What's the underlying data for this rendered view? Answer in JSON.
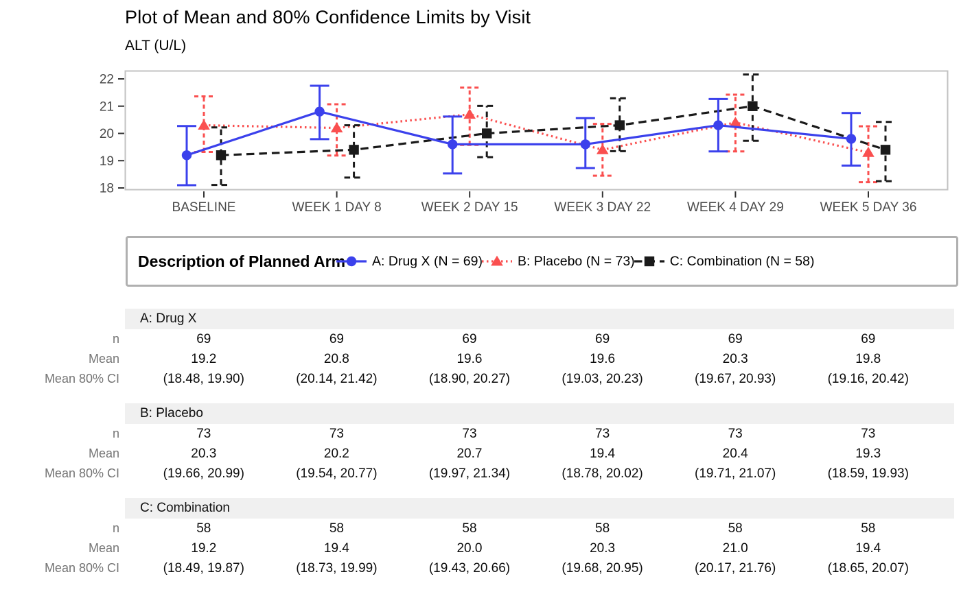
{
  "page": {
    "title": "Plot of Mean and 80% Confidence Limits by Visit",
    "subtitle": "ALT (U/L)"
  },
  "colors": {
    "drug_x": "#3b41ec",
    "placebo": "#fa4f4f",
    "combination": "#1a1a1a",
    "axis_text": "#4a4a4a",
    "axis_tick": "#333333",
    "plot_border": "#c2c2c2",
    "legend_border": "#b0b0b0",
    "section_band": "#f0f0f0",
    "row_label_text": "#757575"
  },
  "chart_data": {
    "type": "line",
    "title": "Plot of Mean and 80% Confidence Limits by Visit",
    "subtitle": "ALT (U/L)",
    "categories": [
      "BASELINE",
      "WEEK 1 DAY 8",
      "WEEK 2 DAY 15",
      "WEEK 3 DAY 22",
      "WEEK 4 DAY 29",
      "WEEK 5 DAY 36"
    ],
    "y_ticks": [
      18,
      19,
      20,
      21,
      22
    ],
    "ylim": [
      17.9,
      22.35
    ],
    "grid": false,
    "legend_title": "Description of Planned Arm",
    "legend_position": "bottom",
    "series": [
      {
        "name": "A: Drug X (N = 69)",
        "arm": "A: Drug X",
        "color": "#3b41ec",
        "marker": "circle",
        "line_style": "solid",
        "n": [
          69,
          69,
          69,
          69,
          69,
          69
        ],
        "mean": [
          19.2,
          20.8,
          19.6,
          19.6,
          20.3,
          19.8
        ],
        "ci80_low": [
          18.48,
          20.14,
          18.9,
          19.03,
          19.67,
          19.16
        ],
        "ci80_high": [
          19.9,
          21.42,
          20.27,
          20.23,
          20.93,
          20.42
        ],
        "whisker_low": [
          18.1,
          19.79,
          18.53,
          18.73,
          19.34,
          18.82
        ],
        "whisker_high": [
          20.27,
          21.75,
          20.62,
          20.56,
          21.26,
          20.75
        ]
      },
      {
        "name": "B: Placebo (N = 73)",
        "arm": "B: Placebo",
        "color": "#fa4f4f",
        "marker": "triangle",
        "line_style": "dotted",
        "n": [
          73,
          73,
          73,
          73,
          73,
          73
        ],
        "mean": [
          20.3,
          20.2,
          20.7,
          19.4,
          20.4,
          19.3
        ],
        "ci80_low": [
          19.66,
          19.54,
          19.97,
          18.78,
          19.71,
          18.59
        ],
        "ci80_high": [
          20.99,
          20.77,
          21.34,
          20.02,
          21.07,
          19.93
        ],
        "whisker_low": [
          19.32,
          19.19,
          19.58,
          18.45,
          19.34,
          18.21
        ],
        "whisker_high": [
          21.36,
          21.07,
          21.68,
          20.35,
          21.42,
          20.26
        ]
      },
      {
        "name": "C: Combination (N = 58)",
        "arm": "C: Combination",
        "color": "#1a1a1a",
        "marker": "square",
        "line_style": "dashed",
        "n": [
          58,
          58,
          58,
          58,
          58,
          58
        ],
        "mean": [
          19.2,
          19.4,
          20.0,
          20.3,
          21.0,
          19.4
        ],
        "ci80_low": [
          18.49,
          18.73,
          19.43,
          19.68,
          20.17,
          18.65
        ],
        "ci80_high": [
          19.87,
          19.99,
          20.66,
          20.95,
          21.76,
          20.07
        ],
        "whisker_low": [
          18.11,
          18.38,
          19.13,
          19.35,
          19.73,
          18.25
        ],
        "whisker_high": [
          20.22,
          20.3,
          21.01,
          21.29,
          22.16,
          20.42
        ]
      }
    ]
  },
  "legend": {
    "title": "Description of Planned Arm",
    "items": [
      {
        "label": "A: Drug X (N = 69)"
      },
      {
        "label": "B: Placebo (N = 73)"
      },
      {
        "label": "C: Combination (N = 58)"
      }
    ]
  },
  "table": {
    "row_labels": [
      "n",
      "Mean",
      "Mean 80% CI"
    ],
    "sections": [
      {
        "header": "A: Drug X",
        "n": [
          "69",
          "69",
          "69",
          "69",
          "69",
          "69"
        ],
        "mean": [
          "19.2",
          "20.8",
          "19.6",
          "19.6",
          "20.3",
          "19.8"
        ],
        "ci": [
          "(18.48, 19.90)",
          "(20.14, 21.42)",
          "(18.90, 20.27)",
          "(19.03, 20.23)",
          "(19.67, 20.93)",
          "(19.16, 20.42)"
        ]
      },
      {
        "header": "B: Placebo",
        "n": [
          "73",
          "73",
          "73",
          "73",
          "73",
          "73"
        ],
        "mean": [
          "20.3",
          "20.2",
          "20.7",
          "19.4",
          "20.4",
          "19.3"
        ],
        "ci": [
          "(19.66, 20.99)",
          "(19.54, 20.77)",
          "(19.97, 21.34)",
          "(18.78, 20.02)",
          "(19.71, 21.07)",
          "(18.59, 19.93)"
        ]
      },
      {
        "header": "C: Combination",
        "n": [
          "58",
          "58",
          "58",
          "58",
          "58",
          "58"
        ],
        "mean": [
          "19.2",
          "19.4",
          "20.0",
          "20.3",
          "21.0",
          "19.4"
        ],
        "ci": [
          "(18.49, 19.87)",
          "(18.73, 19.99)",
          "(19.43, 20.66)",
          "(19.68, 20.95)",
          "(20.17, 21.76)",
          "(18.65, 20.07)"
        ]
      }
    ]
  }
}
